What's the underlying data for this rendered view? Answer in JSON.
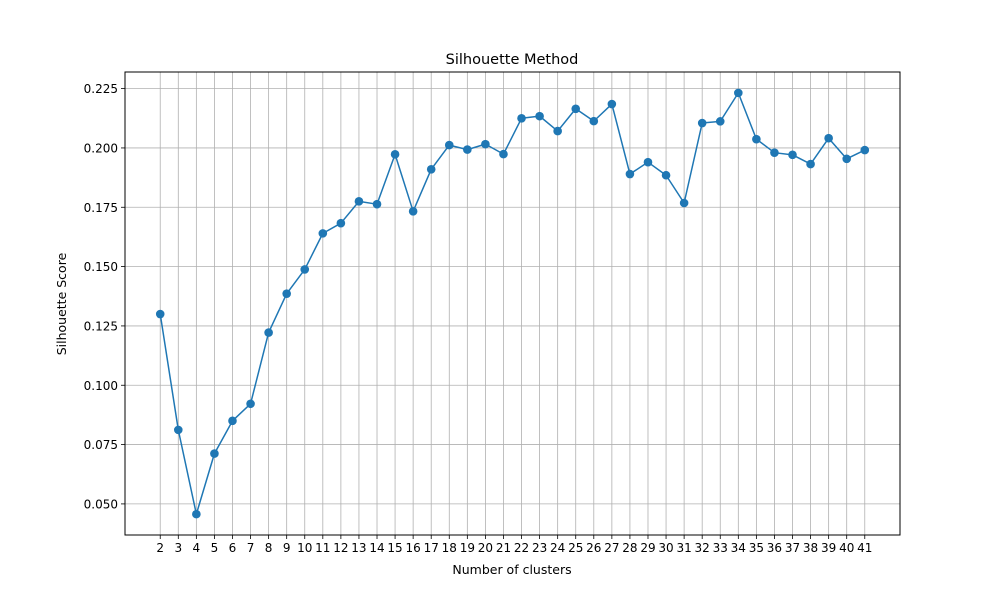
{
  "chart_data": {
    "type": "line",
    "title": "Silhouette Method",
    "xlabel": "Number of clusters",
    "ylabel": "Silhouette Score",
    "x": [
      2,
      3,
      4,
      5,
      6,
      7,
      8,
      9,
      10,
      11,
      12,
      13,
      14,
      15,
      16,
      17,
      18,
      19,
      20,
      21,
      22,
      23,
      24,
      25,
      26,
      27,
      28,
      29,
      30,
      31,
      32,
      33,
      34,
      35,
      36,
      37,
      38,
      39,
      40,
      41
    ],
    "series": [
      {
        "values": [
          0.13,
          0.0812,
          0.0457,
          0.0712,
          0.085,
          0.0922,
          0.1222,
          0.1386,
          0.1488,
          0.164,
          0.1683,
          0.1775,
          0.1763,
          0.1973,
          0.1733,
          0.191,
          0.2012,
          0.1993,
          0.2016,
          0.1974,
          0.2125,
          0.2134,
          0.2071,
          0.2165,
          0.2113,
          0.2185,
          0.189,
          0.194,
          0.1885,
          0.1768,
          0.2105,
          0.2112,
          0.2232,
          0.2037,
          0.198,
          0.1971,
          0.1932,
          0.2041,
          0.1954,
          0.1991
        ],
        "color": "#1f77b4",
        "marker": "circle"
      }
    ],
    "xticks": [
      2,
      3,
      4,
      5,
      6,
      7,
      8,
      9,
      10,
      11,
      12,
      13,
      14,
      15,
      16,
      17,
      18,
      19,
      20,
      21,
      22,
      23,
      24,
      25,
      26,
      27,
      28,
      29,
      30,
      31,
      32,
      33,
      34,
      35,
      36,
      37,
      38,
      39,
      40,
      41
    ],
    "yticks": [
      0.05,
      0.075,
      0.1,
      0.125,
      0.15,
      0.175,
      0.2,
      0.225
    ],
    "ytick_labels": [
      "0.050",
      "0.075",
      "0.100",
      "0.125",
      "0.150",
      "0.175",
      "0.200",
      "0.225"
    ],
    "xlim": [
      0.05,
      42.95
    ],
    "ylim": [
      0.0369,
      0.232
    ],
    "grid": true,
    "grid_color": "#b0b0b0",
    "axis_color": "#000000"
  }
}
